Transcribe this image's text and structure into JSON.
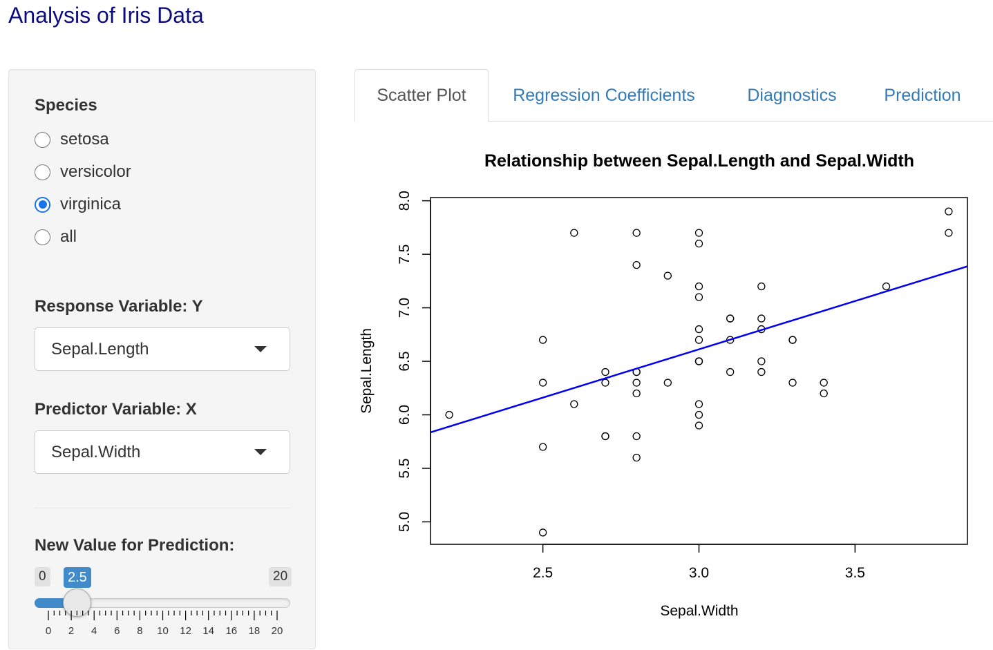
{
  "app": {
    "title": "Analysis of Iris Data"
  },
  "sidebar": {
    "species": {
      "label": "Species",
      "options": [
        {
          "label": "setosa",
          "checked": false
        },
        {
          "label": "versicolor",
          "checked": false
        },
        {
          "label": "virginica",
          "checked": true
        },
        {
          "label": "all",
          "checked": false
        }
      ]
    },
    "response": {
      "label": "Response Variable: Y",
      "value": "Sepal.Length"
    },
    "predictor": {
      "label": "Predictor Variable: X",
      "value": "Sepal.Width"
    },
    "slider": {
      "label": "New Value for Prediction:",
      "min": "0",
      "max": "20",
      "value": "2.5",
      "min_num": 0,
      "max_num": 20,
      "value_num": 2.5,
      "tick_labels": [
        "0",
        "2",
        "4",
        "6",
        "8",
        "10",
        "12",
        "14",
        "16",
        "18",
        "20"
      ],
      "accent_color": "#428bca"
    }
  },
  "tabs": [
    {
      "label": "Scatter Plot",
      "active": true
    },
    {
      "label": "Regression Coefficients",
      "active": false
    },
    {
      "label": "Diagnostics",
      "active": false
    },
    {
      "label": "Prediction",
      "active": false
    }
  ],
  "chart_data": {
    "type": "scatter",
    "title": "Relationship between Sepal.Length and Sepal.Width",
    "xlabel": "Sepal.Width",
    "ylabel": "Sepal.Length",
    "xlim": [
      2.14,
      3.86
    ],
    "ylim": [
      4.79,
      8.03
    ],
    "xticks": [
      "2.5",
      "3.0",
      "3.5"
    ],
    "yticks": [
      "5.0",
      "5.5",
      "6.0",
      "6.5",
      "7.0",
      "7.5",
      "8.0"
    ],
    "points": [
      [
        3.3,
        6.3
      ],
      [
        2.7,
        5.8
      ],
      [
        3.0,
        7.1
      ],
      [
        2.9,
        6.3
      ],
      [
        3.0,
        6.5
      ],
      [
        3.0,
        7.6
      ],
      [
        2.5,
        4.9
      ],
      [
        2.9,
        7.3
      ],
      [
        2.5,
        6.7
      ],
      [
        3.6,
        7.2
      ],
      [
        3.2,
        6.5
      ],
      [
        2.7,
        6.4
      ],
      [
        3.0,
        6.8
      ],
      [
        2.5,
        5.7
      ],
      [
        2.8,
        5.8
      ],
      [
        3.2,
        6.4
      ],
      [
        3.0,
        6.5
      ],
      [
        3.8,
        7.7
      ],
      [
        2.6,
        7.7
      ],
      [
        2.2,
        6.0
      ],
      [
        3.2,
        6.9
      ],
      [
        2.8,
        5.6
      ],
      [
        2.8,
        7.7
      ],
      [
        2.7,
        6.3
      ],
      [
        3.3,
        6.7
      ],
      [
        3.2,
        7.2
      ],
      [
        2.8,
        6.2
      ],
      [
        3.0,
        6.1
      ],
      [
        2.8,
        6.4
      ],
      [
        3.0,
        7.2
      ],
      [
        2.8,
        7.4
      ],
      [
        3.8,
        7.9
      ],
      [
        2.8,
        6.4
      ],
      [
        2.8,
        6.3
      ],
      [
        2.6,
        6.1
      ],
      [
        3.0,
        7.7
      ],
      [
        3.4,
        6.3
      ],
      [
        3.1,
        6.4
      ],
      [
        3.0,
        6.0
      ],
      [
        3.1,
        6.9
      ],
      [
        3.1,
        6.7
      ],
      [
        3.1,
        6.9
      ],
      [
        2.7,
        5.8
      ],
      [
        3.2,
        6.8
      ],
      [
        3.3,
        6.7
      ],
      [
        3.0,
        6.7
      ],
      [
        2.5,
        6.3
      ],
      [
        3.0,
        6.5
      ],
      [
        3.4,
        6.2
      ],
      [
        3.0,
        5.9
      ]
    ],
    "regression_line": {
      "intercept": 3.906,
      "slope": 0.902,
      "color": "#0000ee"
    }
  }
}
